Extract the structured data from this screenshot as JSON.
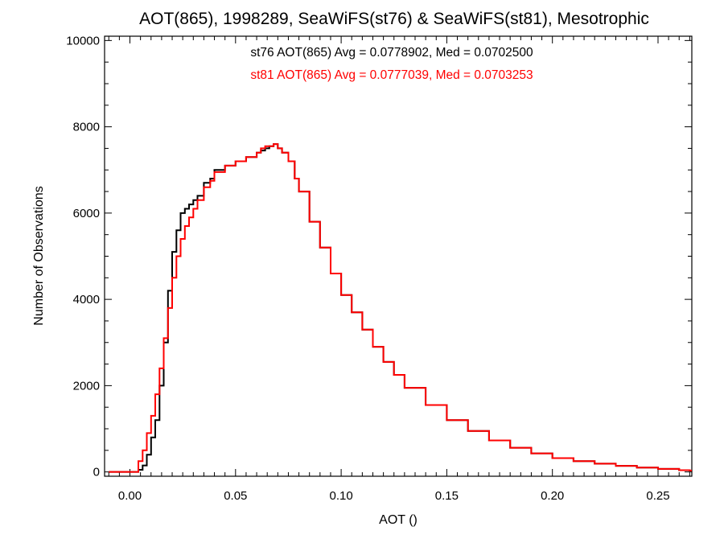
{
  "chart_data": {
    "type": "line",
    "step": true,
    "title": "AOT(865), 1998289, SeaWiFS(st76) & SeaWiFS(st81), Mesotrophic",
    "xlabel": "AOT ()",
    "ylabel": "Number of Observations",
    "xlim": [
      -0.012,
      0.266
    ],
    "ylim": [
      -100,
      10100
    ],
    "x_ticks": [
      0.0,
      0.05,
      0.1,
      0.15,
      0.2,
      0.25
    ],
    "x_tick_labels": [
      "0.00",
      "0.05",
      "0.10",
      "0.15",
      "0.20",
      "0.25"
    ],
    "y_ticks": [
      0,
      2000,
      4000,
      6000,
      8000,
      10000
    ],
    "y_tick_labels": [
      "0",
      "2000",
      "4000",
      "6000",
      "8000",
      "10000"
    ],
    "grid": false,
    "annotations": [
      {
        "text": "st76 AOT(865) Avg = 0.0778902, Med = 0.0702500",
        "color": "#000000"
      },
      {
        "text": "st81 AOT(865) Avg = 0.0777039, Med = 0.0703253",
        "color": "#ff0000"
      }
    ],
    "x": [
      -0.01,
      0.0,
      0.004,
      0.006,
      0.008,
      0.01,
      0.012,
      0.014,
      0.016,
      0.018,
      0.02,
      0.022,
      0.024,
      0.026,
      0.028,
      0.03,
      0.032,
      0.035,
      0.038,
      0.04,
      0.045,
      0.05,
      0.055,
      0.06,
      0.062,
      0.064,
      0.066,
      0.068,
      0.07,
      0.072,
      0.075,
      0.078,
      0.08,
      0.085,
      0.09,
      0.095,
      0.1,
      0.105,
      0.11,
      0.115,
      0.12,
      0.125,
      0.13,
      0.14,
      0.15,
      0.16,
      0.17,
      0.18,
      0.19,
      0.2,
      0.21,
      0.22,
      0.23,
      0.24,
      0.25,
      0.26,
      0.265
    ],
    "series": [
      {
        "color": "#000000",
        "values": [
          0,
          0,
          50,
          150,
          400,
          800,
          1200,
          2000,
          3000,
          4200,
          5100,
          5600,
          6000,
          6100,
          6200,
          6300,
          6400,
          6700,
          6800,
          7000,
          7100,
          7200,
          7300,
          7400,
          7450,
          7500,
          7550,
          7600,
          7500,
          7400,
          7200,
          6800,
          6500,
          5800,
          5200,
          4600,
          4100,
          3700,
          3300,
          2900,
          2550,
          2250,
          1950,
          1550,
          1200,
          950,
          730,
          560,
          430,
          320,
          250,
          190,
          140,
          100,
          70,
          40,
          30
        ]
      },
      {
        "color": "#ff0000",
        "values": [
          0,
          0,
          250,
          500,
          900,
          1300,
          1800,
          2400,
          3100,
          3800,
          4500,
          5000,
          5400,
          5700,
          5900,
          6100,
          6300,
          6600,
          6750,
          6950,
          7100,
          7200,
          7300,
          7400,
          7500,
          7550,
          7550,
          7600,
          7500,
          7400,
          7200,
          6800,
          6500,
          5800,
          5200,
          4600,
          4100,
          3700,
          3300,
          2900,
          2550,
          2250,
          1950,
          1550,
          1200,
          950,
          730,
          560,
          430,
          320,
          250,
          190,
          140,
          100,
          70,
          40,
          30
        ]
      }
    ]
  }
}
